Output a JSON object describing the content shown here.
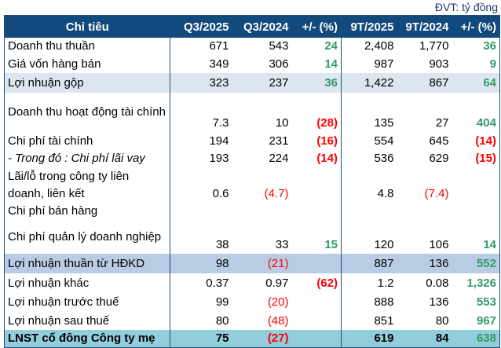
{
  "unit_label": "ĐVT: tỷ đồng",
  "columns": [
    "Chỉ tiêu",
    "Q3/2025",
    "Q3/2024",
    "+/- (%)",
    "9T/2025",
    "9T/2024",
    "+/- (%)"
  ],
  "colors": {
    "header": "#124A7E",
    "positive": "#339966",
    "negative": "#FF0000",
    "highlight_light": "#DCE6F1",
    "highlight_mid": "#B8CCE4",
    "highlight_total": "#92CDDC"
  },
  "rows": [
    {
      "label": "Doanh thu thuần",
      "q3_2025": "671",
      "q3_2024": "543",
      "q_change": "24",
      "ytd_2025": "2,408",
      "ytd_2024": "1,770",
      "ytd_change": "36"
    },
    {
      "label": "Giá vốn hàng bán",
      "q3_2025": "349",
      "q3_2024": "306",
      "q_change": "14",
      "ytd_2025": "987",
      "ytd_2024": "903",
      "ytd_change": "9"
    },
    {
      "label": "Lợi nhuận gộp",
      "q3_2025": "323",
      "q3_2024": "237",
      "q_change": "36",
      "ytd_2025": "1,422",
      "ytd_2024": "867",
      "ytd_change": "64"
    },
    {
      "label": "Doanh thu hoạt động tài chính",
      "q3_2025": "7.3",
      "q3_2024": "10",
      "q_change": "(28)",
      "ytd_2025": "135",
      "ytd_2024": "27",
      "ytd_change": "404"
    },
    {
      "label": "Chi phí tài chính",
      "q3_2025": "194",
      "q3_2024": "231",
      "q_change": "(16)",
      "ytd_2025": "554",
      "ytd_2024": "645",
      "ytd_change": "(14)"
    },
    {
      "label": "- Trong đó : Chi phí lãi vay",
      "q3_2025": "193",
      "q3_2024": "224",
      "q_change": "(14)",
      "ytd_2025": "536",
      "ytd_2024": "629",
      "ytd_change": "(15)"
    },
    {
      "label": "Lãi/lỗ trong công ty liên doanh, liên kết",
      "q3_2025": "0.6",
      "q3_2024": "(4.7)",
      "q_change": "",
      "ytd_2025": "4.8",
      "ytd_2024": "(7.4)",
      "ytd_change": ""
    },
    {
      "label": "Chi phí bán hàng",
      "q3_2025": "",
      "q3_2024": "",
      "q_change": "",
      "ytd_2025": "",
      "ytd_2024": "",
      "ytd_change": ""
    },
    {
      "label": "Chi phí quản lý doanh nghiệp",
      "q3_2025": "38",
      "q3_2024": "33",
      "q_change": "15",
      "ytd_2025": "120",
      "ytd_2024": "106",
      "ytd_change": "14"
    },
    {
      "label": "Lợi nhuận thuần từ HĐKD",
      "q3_2025": "98",
      "q3_2024": "(21)",
      "q_change": "",
      "ytd_2025": "887",
      "ytd_2024": "136",
      "ytd_change": "552"
    },
    {
      "label": "Lợi nhuận khác",
      "q3_2025": "0.37",
      "q3_2024": "0.97",
      "q_change": "(62)",
      "ytd_2025": "1.2",
      "ytd_2024": "0.08",
      "ytd_change": "1,326"
    },
    {
      "label": "Lợi nhuận trước thuế",
      "q3_2025": "99",
      "q3_2024": "(20)",
      "q_change": "",
      "ytd_2025": "888",
      "ytd_2024": "136",
      "ytd_change": "553"
    },
    {
      "label": "Lợi nhuận sau thuế",
      "q3_2025": "80",
      "q3_2024": "(48)",
      "q_change": "",
      "ytd_2025": "851",
      "ytd_2024": "80",
      "ytd_change": "967"
    },
    {
      "label": "LNST cổ đông Công ty mẹ",
      "q3_2025": "75",
      "q3_2024": "(27)",
      "q_change": "",
      "ytd_2025": "619",
      "ytd_2024": "84",
      "ytd_change": "638"
    }
  ]
}
